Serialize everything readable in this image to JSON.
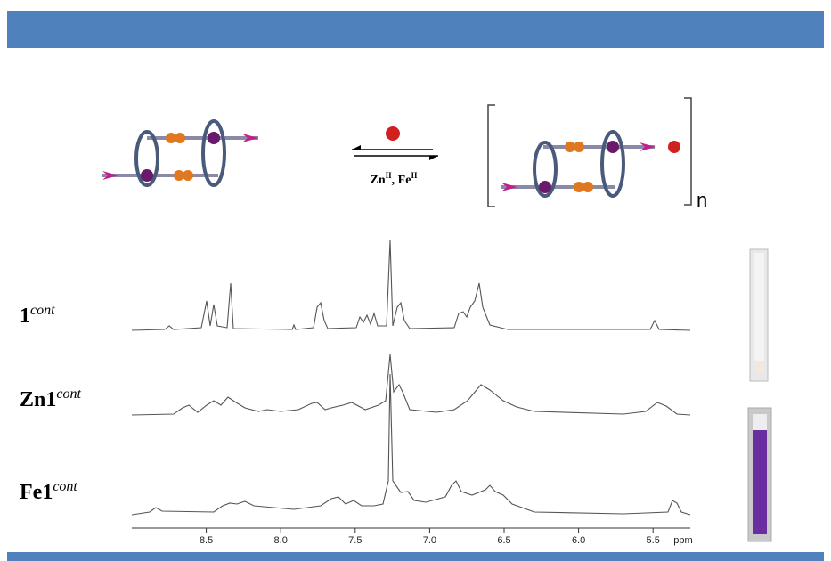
{
  "scheme": {
    "conditions": [
      "Zn",
      "II",
      ", Fe",
      "II"
    ],
    "n": "n"
  },
  "spectra": [
    {
      "label": "1",
      "sup": "cont"
    },
    {
      "label": "Zn1",
      "sup": "cont"
    },
    {
      "label": "Fe1",
      "sup": "cont"
    }
  ],
  "axis": {
    "unit": "ppm",
    "xlim": [
      9.0,
      5.25
    ],
    "xticks": [
      8.5,
      {
        "value": 8,
        "label": "8.0"
      },
      7.5,
      {
        "value": 7,
        "label": "7.0"
      },
      6.5,
      {
        "value": 6,
        "label": "6.0"
      },
      5.5
    ]
  }
}
